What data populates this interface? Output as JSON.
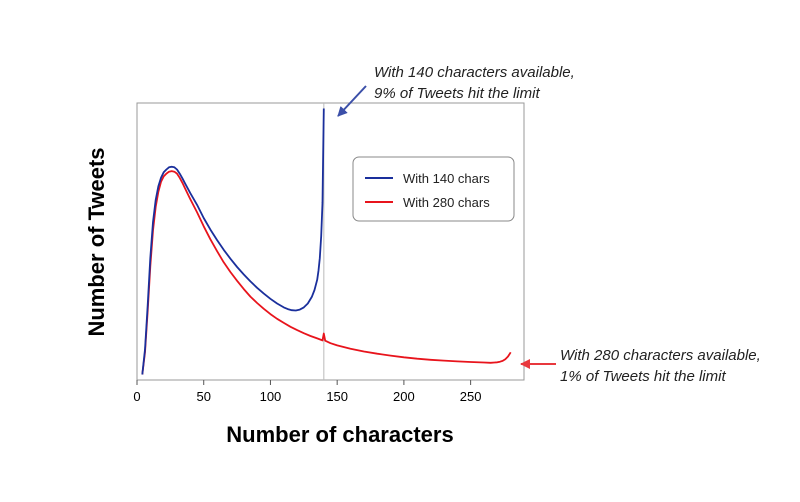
{
  "chart_data": {
    "type": "line",
    "title": "",
    "xlabel": "Number of characters",
    "ylabel": "Number of Tweets",
    "xlim": [
      0,
      290
    ],
    "ylim": [
      0,
      1000
    ],
    "xticks": [
      0,
      50,
      100,
      150,
      200,
      250
    ],
    "grid": false,
    "legend_position": "top-right",
    "series": [
      {
        "name": "With 140 chars",
        "color": "#1a2f9c",
        "x": [
          4,
          6,
          8,
          10,
          12,
          14,
          16,
          18,
          20,
          22,
          24,
          26,
          28,
          30,
          32,
          34,
          36,
          38,
          40,
          45,
          50,
          55,
          60,
          65,
          70,
          75,
          80,
          85,
          90,
          95,
          100,
          105,
          110,
          113,
          116,
          119,
          122,
          125,
          128,
          131,
          133,
          135,
          136,
          137,
          138,
          139,
          140
        ],
        "values": [
          20,
          110,
          270,
          440,
          570,
          650,
          700,
          730,
          750,
          760,
          768,
          770,
          768,
          760,
          745,
          728,
          710,
          692,
          674,
          632,
          585,
          543,
          505,
          470,
          438,
          408,
          381,
          356,
          333,
          312,
          293,
          276,
          262,
          256,
          252,
          251,
          254,
          262,
          276,
          300,
          325,
          362,
          395,
          440,
          520,
          640,
          980
        ]
      },
      {
        "name": "With 280 chars",
        "color": "#e8141c",
        "x": [
          4,
          6,
          8,
          10,
          12,
          14,
          16,
          18,
          20,
          22,
          24,
          26,
          28,
          30,
          32,
          34,
          36,
          38,
          40,
          45,
          50,
          55,
          60,
          65,
          70,
          75,
          80,
          85,
          90,
          95,
          100,
          105,
          110,
          115,
          120,
          125,
          130,
          135,
          139,
          140,
          141,
          145,
          150,
          160,
          170,
          180,
          190,
          200,
          210,
          220,
          230,
          240,
          250,
          260,
          265,
          268,
          270,
          272,
          274,
          276,
          278,
          280
        ],
        "values": [
          20,
          100,
          250,
          410,
          540,
          625,
          680,
          715,
          735,
          745,
          752,
          754,
          752,
          745,
          730,
          712,
          692,
          672,
          652,
          605,
          555,
          508,
          465,
          425,
          390,
          358,
          328,
          301,
          278,
          257,
          238,
          221,
          206,
          192,
          180,
          169,
          159,
          150,
          143,
          168,
          142,
          133,
          125,
          113,
          103,
          95,
          88,
          82,
          77,
          73,
          70,
          67,
          65,
          63,
          62,
          63,
          64,
          66,
          69,
          75,
          85,
          100
        ]
      }
    ],
    "reference_line_x": 140,
    "annotations": [
      {
        "line1": "With 140 characters available,",
        "line2": "9% of Tweets hit the limit",
        "color": "#3b4fa8",
        "target_series": 0,
        "target_x": 140
      },
      {
        "line1": "With 280 characters available,",
        "line2": "1% of Tweets hit the limit",
        "color": "#e8383e",
        "target_series": 1,
        "target_x": 280
      }
    ]
  }
}
